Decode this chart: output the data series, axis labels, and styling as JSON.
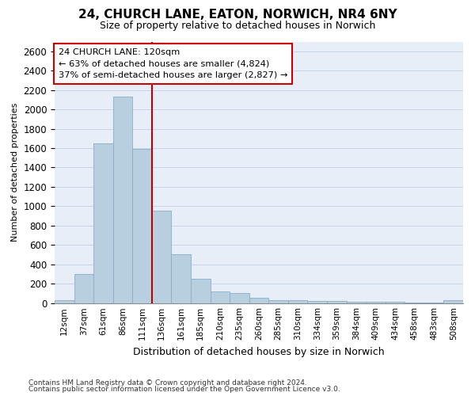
{
  "title_line1": "24, CHURCH LANE, EATON, NORWICH, NR4 6NY",
  "title_line2": "Size of property relative to detached houses in Norwich",
  "xlabel": "Distribution of detached houses by size in Norwich",
  "ylabel": "Number of detached properties",
  "bar_labels": [
    "12sqm",
    "37sqm",
    "61sqm",
    "86sqm",
    "111sqm",
    "136sqm",
    "161sqm",
    "185sqm",
    "210sqm",
    "235sqm",
    "260sqm",
    "285sqm",
    "310sqm",
    "334sqm",
    "359sqm",
    "384sqm",
    "409sqm",
    "434sqm",
    "458sqm",
    "483sqm",
    "508sqm"
  ],
  "bar_values": [
    25,
    300,
    1650,
    2130,
    1590,
    950,
    500,
    250,
    120,
    100,
    50,
    30,
    25,
    20,
    20,
    15,
    10,
    10,
    5,
    5,
    25
  ],
  "bar_color": "#b8cfe0",
  "bar_edge_color": "#8aadc8",
  "vline_color": "#bb0000",
  "vline_x": 4.5,
  "annotation_text": "24 CHURCH LANE: 120sqm\n← 63% of detached houses are smaller (4,824)\n37% of semi-detached houses are larger (2,827) →",
  "ann_box_face": "#ffffff",
  "ann_box_edge": "#cc0000",
  "ylim": [
    0,
    2700
  ],
  "yticks": [
    0,
    200,
    400,
    600,
    800,
    1000,
    1200,
    1400,
    1600,
    1800,
    2000,
    2200,
    2400,
    2600
  ],
  "grid_color": "#c8d4e8",
  "axes_bg": "#e8eef8",
  "footer_line1": "Contains HM Land Registry data © Crown copyright and database right 2024.",
  "footer_line2": "Contains public sector information licensed under the Open Government Licence v3.0.",
  "title1_fontsize": 11,
  "title2_fontsize": 9,
  "ylabel_fontsize": 8,
  "xlabel_fontsize": 9,
  "tick_fontsize": 7.5,
  "footer_fontsize": 6.5
}
